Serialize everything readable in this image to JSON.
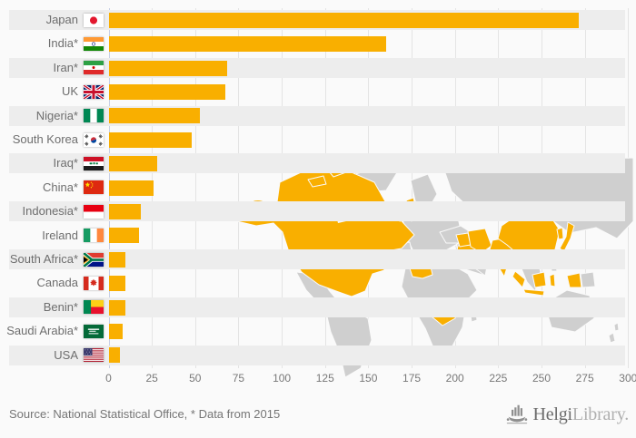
{
  "chart_data": {
    "type": "bar",
    "orientation": "horizontal",
    "title": "",
    "xlabel": "",
    "ylabel": "",
    "xlim": [
      0,
      300
    ],
    "x_ticks": [
      0,
      25,
      50,
      75,
      100,
      125,
      150,
      175,
      200,
      225,
      250,
      275,
      300
    ],
    "grid": true,
    "bar_color": "#F9AF00",
    "map_land_color": "#cfcfcf",
    "map_highlight_color": "#F9AF00",
    "categories": [
      "Japan",
      "India*",
      "Iran*",
      "UK",
      "Nigeria*",
      "South Korea",
      "Iraq*",
      "China*",
      "Indonesia*",
      "Ireland",
      "South Africa*",
      "Canada",
      "Benin*",
      "Saudi Arabia*",
      "USA"
    ],
    "values": [
      271,
      160,
      68,
      67,
      52.5,
      48,
      28,
      25.5,
      18.5,
      17.3,
      9.6,
      9.4,
      9.2,
      8,
      6.3
    ],
    "flags": [
      "jp",
      "in",
      "ir",
      "gb",
      "ng",
      "kr",
      "iq",
      "cn",
      "id",
      "ie",
      "za",
      "ca",
      "bj",
      "sa",
      "us"
    ],
    "map_highlighted_countries": [
      "Japan",
      "India",
      "Iran",
      "UK",
      "Nigeria",
      "South Korea",
      "Iraq",
      "China",
      "Indonesia",
      "Ireland",
      "South Africa",
      "Canada",
      "Benin",
      "Saudi Arabia",
      "USA"
    ]
  },
  "footer": {
    "source": "Source: National Statistical Office, * Data from 2015",
    "logo_icon": "helgi-ship-bars-icon",
    "logo_primary": "Helgi",
    "logo_secondary": "Library."
  }
}
